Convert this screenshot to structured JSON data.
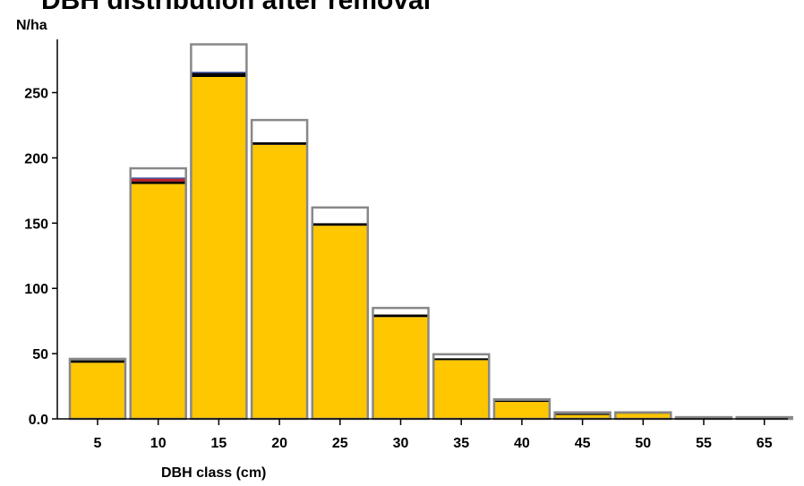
{
  "chart_data": {
    "type": "bar",
    "title": "DBH distribution after removal",
    "ylabel": "N/ha",
    "xlabel": "DBH class (cm)",
    "ylim": [
      0,
      290
    ],
    "y_ticks": [
      "0.0",
      "50",
      "100",
      "150",
      "200",
      "250"
    ],
    "y_tick_values": [
      0,
      50,
      100,
      150,
      200,
      250
    ],
    "categories": [
      "5",
      "10",
      "15",
      "20",
      "25",
      "30",
      "35",
      "40",
      "45",
      "50",
      "55",
      "65"
    ],
    "grid": false,
    "legend": "none",
    "colors": {
      "remaining": "#FFC700",
      "removed": "#FFFFFF",
      "outline": "#888888",
      "black_band": "#000000",
      "red_band": "#C0202A",
      "blue_band": "#2E3E8F"
    },
    "series": [
      {
        "key": "remaining",
        "values": [
          43,
          180,
          262,
          210,
          148,
          78,
          45,
          13,
          3,
          4,
          0.5,
          0.5
        ]
      },
      {
        "key": "black_band",
        "values": [
          2,
          2,
          3,
          2,
          2,
          2,
          1.5,
          1,
          1,
          1,
          0.8,
          0.8
        ]
      },
      {
        "key": "red_band",
        "values": [
          0,
          2,
          0,
          0,
          0,
          0,
          0,
          0,
          0,
          0,
          0,
          0
        ]
      },
      {
        "key": "blue_band",
        "values": [
          0,
          1,
          1,
          0,
          0,
          0,
          0,
          0,
          0,
          0,
          0,
          0
        ]
      },
      {
        "key": "removed",
        "values": [
          1,
          7,
          21,
          17,
          12,
          5,
          3,
          1,
          1,
          0,
          0,
          0
        ]
      }
    ]
  }
}
